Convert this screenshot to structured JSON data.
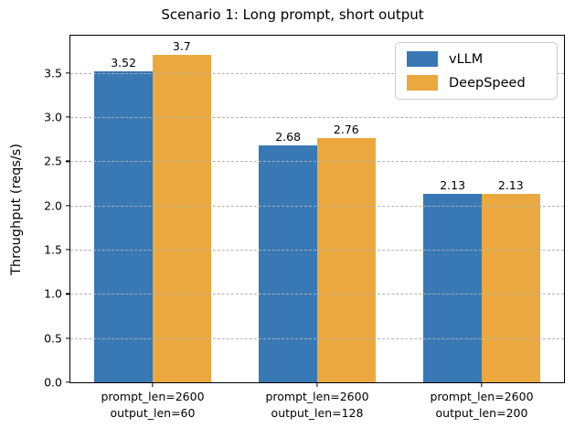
{
  "chart_data": {
    "type": "bar",
    "title": "Scenario 1: Long prompt, short output",
    "xlabel": "",
    "ylabel": "Throughput (reqs/s)",
    "categories": [
      "prompt_len=2600\noutput_len=60",
      "prompt_len=2600\noutput_len=128",
      "prompt_len=2600\noutput_len=200"
    ],
    "series": [
      {
        "name": "vLLM",
        "color": "#3778b5",
        "values": [
          3.52,
          2.68,
          2.13
        ],
        "labels": [
          "3.52",
          "2.68",
          "2.13"
        ]
      },
      {
        "name": "DeepSpeed",
        "color": "#ebA83e",
        "values": [
          3.7,
          2.76,
          2.13
        ],
        "labels": [
          "3.7",
          "2.76",
          "2.13"
        ]
      }
    ],
    "ylim": [
      0,
      3.92
    ],
    "yticks": [
      0.0,
      0.5,
      1.0,
      1.5,
      2.0,
      2.5,
      3.0,
      3.5
    ],
    "ytick_labels": [
      "0.0",
      "0.5",
      "1.0",
      "1.5",
      "2.0",
      "2.5",
      "3.0",
      "3.5"
    ],
    "grid": "horizontal-dashed",
    "grid_color": "#b2b2b2",
    "axis_color": "#000000",
    "legend_position": "upper right"
  }
}
